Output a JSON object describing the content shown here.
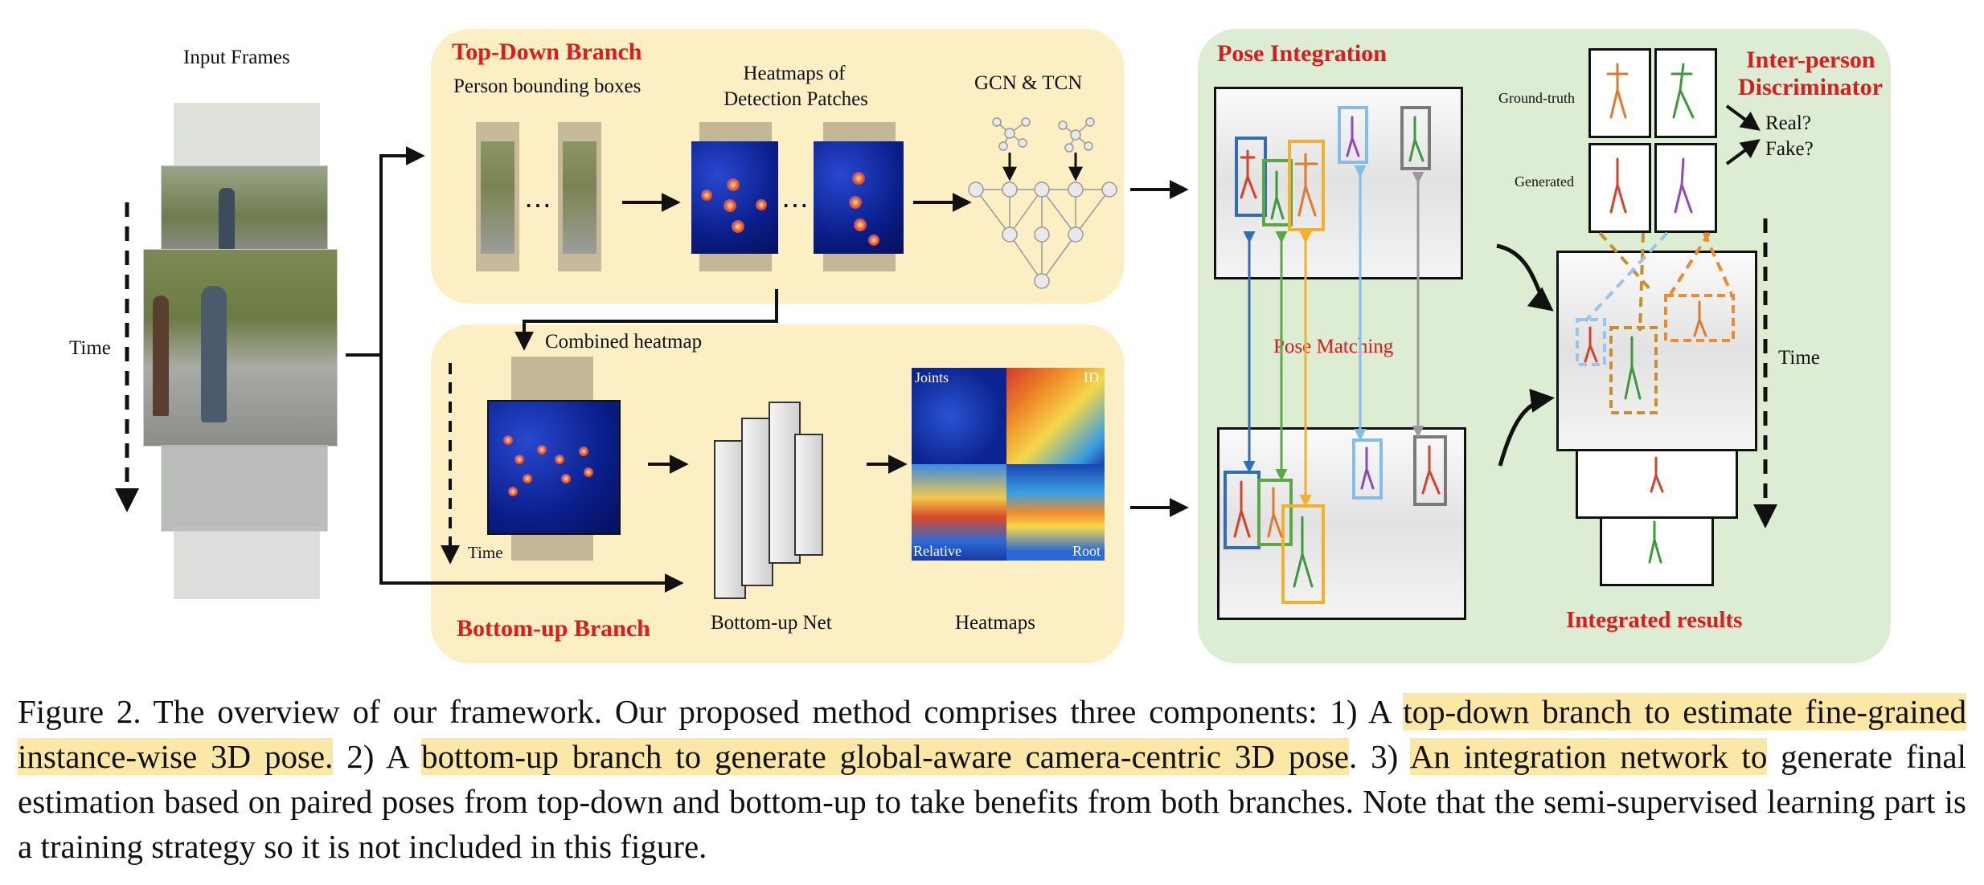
{
  "figure": {
    "input_frames_label": "Input Frames",
    "time_left": "Time",
    "time_right": "Time",
    "time_small": "Time",
    "topdown": {
      "title": "Top-Down Branch",
      "bbox_label": "Person bounding boxes",
      "heatmaps_label_line1": "Heatmaps of",
      "heatmaps_label_line2": "Detection Patches",
      "gcn_label": "GCN & TCN",
      "ellipsis_1": "⋯",
      "ellipsis_2": "⋯"
    },
    "bottomup": {
      "title": "Bottom-up Branch",
      "combined_label": "Combined heatmap",
      "net_label": "Bottom-up Net",
      "heatmaps_label": "Heatmaps",
      "q_joints": "Joints",
      "q_id": "ID",
      "q_relative": "Relative",
      "q_root": "Root"
    },
    "integration": {
      "title": "Pose Integration",
      "matching_label": "Pose Matching",
      "results_label": "Integrated results",
      "disc_title_line1": "Inter-person",
      "disc_title_line2": "Discriminator",
      "ground_truth": "Ground-truth",
      "generated": "Generated",
      "real": "Real?",
      "fake": "Fake?"
    },
    "colors": {
      "panel_yellow": "#fcefc4",
      "panel_green": "#dcedd3",
      "title_red": "#e0191b",
      "highlight": "#fbe7a6",
      "box_blue": "#2f6db5",
      "box_green": "#5aa845",
      "box_orange": "#f2b12a",
      "box_lightblue": "#86bde8",
      "box_gray": "#7a7a7a",
      "dash_orange": "#f08a2a",
      "dash_lightblue": "#9cc4ea",
      "dash_brown": "#c8902a"
    }
  },
  "caption": {
    "p1": "Figure 2. The overview of our framework. Our proposed method comprises three components: 1) A ",
    "h1": "top-down branch to estimate fine-grained instance-wise 3D pose.",
    "p2": " 2) A ",
    "h2": "bottom-up branch to generate global-aware camera-centric 3D pose",
    "p3": ". 3) ",
    "h3": "An integration network to",
    "p4": " generate final estimation based on paired poses from top-down and bottom-up to take benefits from both branches. Note that the semi-supervised learning part is a training strategy so it is not included in this figure."
  }
}
